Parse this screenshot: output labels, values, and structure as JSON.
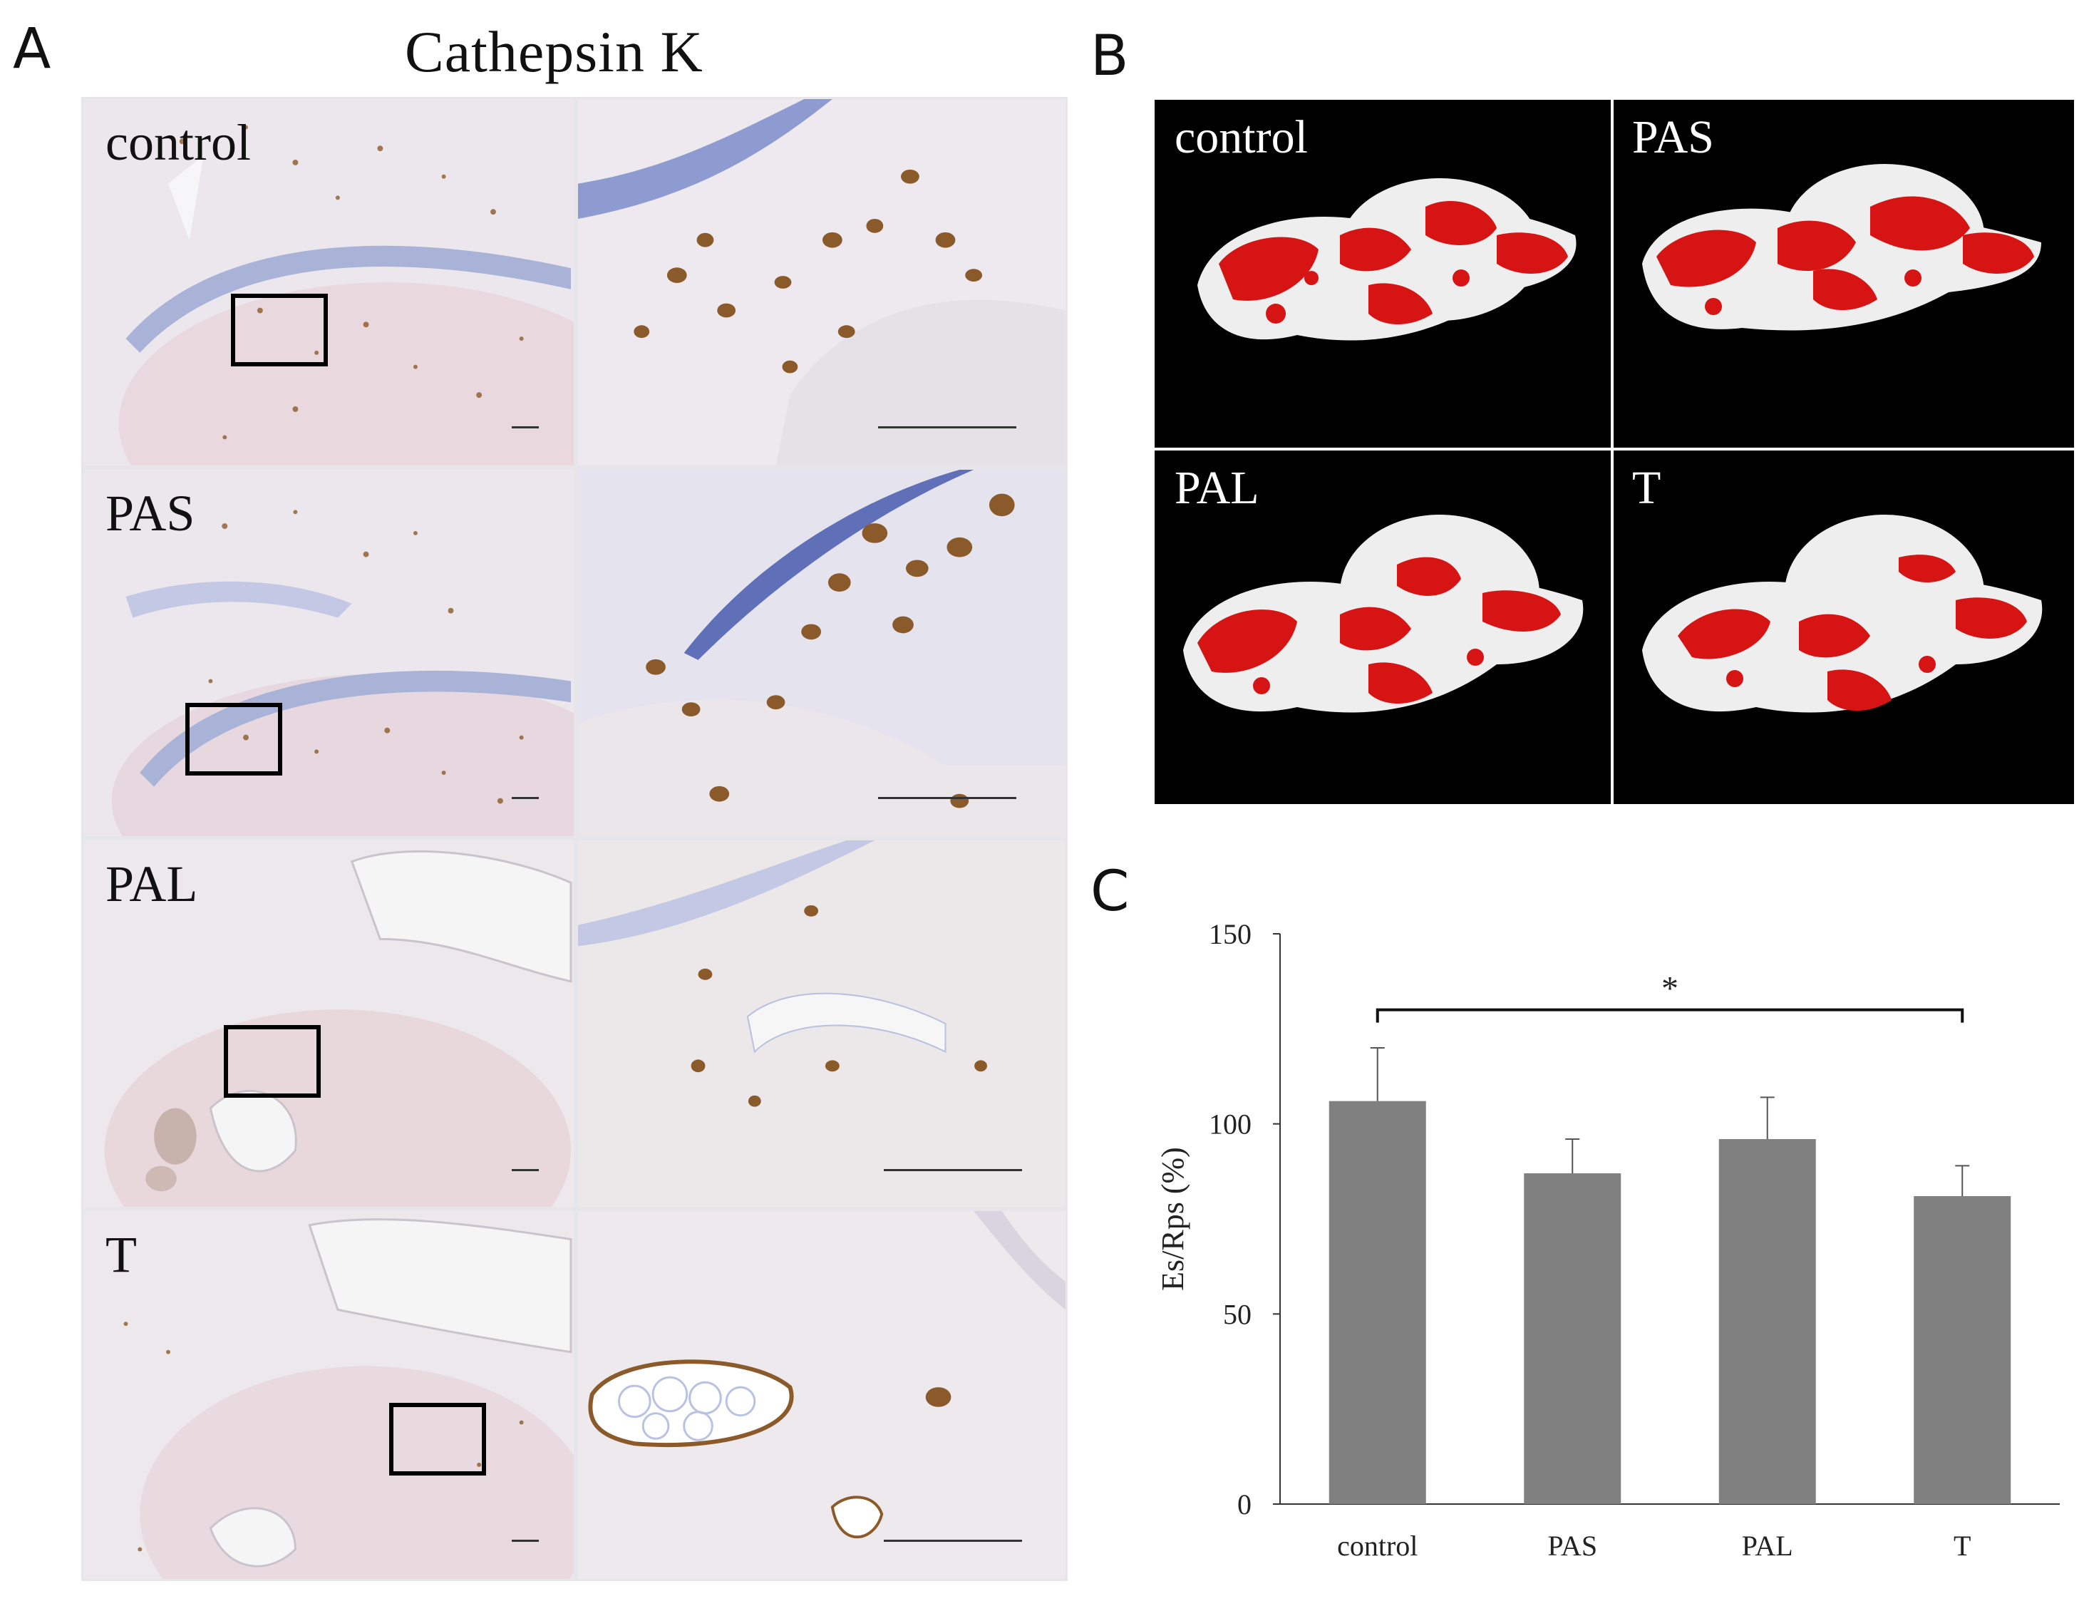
{
  "figure": {
    "panel_a": {
      "letter": "A",
      "title": "Cathepsin K",
      "rows": [
        {
          "label": "control"
        },
        {
          "label": "PAS"
        },
        {
          "label": "PAL"
        },
        {
          "label": "T"
        }
      ]
    },
    "panel_b": {
      "letter": "B",
      "cells": [
        {
          "label": "control"
        },
        {
          "label": "PAS"
        },
        {
          "label": "PAL"
        },
        {
          "label": "T"
        }
      ]
    },
    "panel_c": {
      "letter": "C"
    }
  },
  "colors": {
    "bar": "#808080",
    "he_background": "#ece7ec",
    "stain_brown": "#8b5a2b",
    "hematoxylin_blue": "#6f7fc4",
    "render_red": "#d61414",
    "render_white": "#eeeeee"
  },
  "chart_data": {
    "type": "bar",
    "categories": [
      "control",
      "PAS",
      "PAL",
      "T"
    ],
    "values": [
      106,
      87,
      96,
      81
    ],
    "errors": [
      14,
      9,
      11,
      8
    ],
    "ylabel": "Es/Rps (%)",
    "ylim": [
      0,
      150
    ],
    "yticks": [
      0,
      50,
      100,
      150
    ],
    "grid": false,
    "significance": [
      {
        "from": "control",
        "to": "T",
        "label": "*"
      }
    ]
  }
}
